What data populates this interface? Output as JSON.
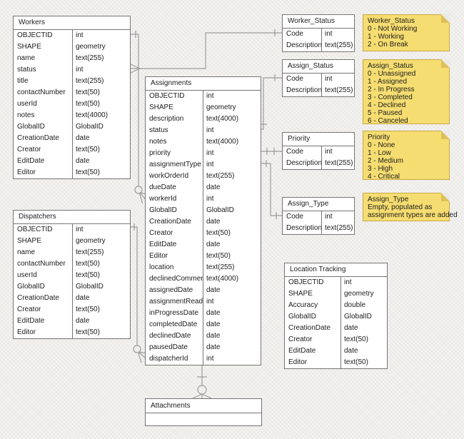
{
  "tables": {
    "workers": {
      "title": "Workers",
      "rows": [
        {
          "name": "OBJECTID",
          "type": "int"
        },
        {
          "name": "SHAPE",
          "type": "geometry"
        },
        {
          "name": "name",
          "type": "text(255)"
        },
        {
          "name": "status",
          "type": "int"
        },
        {
          "name": "title",
          "type": "text(255)"
        },
        {
          "name": "contactNumber",
          "type": "text(50)"
        },
        {
          "name": "userId",
          "type": "text(50)"
        },
        {
          "name": "notes",
          "type": "text(4000)"
        },
        {
          "name": "GlobalID",
          "type": "GlobalID"
        },
        {
          "name": "CreationDate",
          "type": "date"
        },
        {
          "name": "Creator",
          "type": "text(50)"
        },
        {
          "name": "EditDate",
          "type": "date"
        },
        {
          "name": "Editor",
          "type": "text(50)"
        }
      ]
    },
    "dispatchers": {
      "title": "Dispatchers",
      "rows": [
        {
          "name": "OBJECTID",
          "type": "int"
        },
        {
          "name": "SHAPE",
          "type": "geometry"
        },
        {
          "name": "name",
          "type": "text(255)"
        },
        {
          "name": "contactNumber",
          "type": "text(50)"
        },
        {
          "name": "userId",
          "type": "text(50)"
        },
        {
          "name": "GlobalID",
          "type": "GlobalID"
        },
        {
          "name": "CreationDate",
          "type": "date"
        },
        {
          "name": "Creator",
          "type": "text(50)"
        },
        {
          "name": "EditDate",
          "type": "date"
        },
        {
          "name": "Editor",
          "type": "text(50)"
        }
      ]
    },
    "assignments": {
      "title": "Assignments",
      "rows": [
        {
          "name": "OBJECTID",
          "type": "int"
        },
        {
          "name": "SHAPE",
          "type": "geometry"
        },
        {
          "name": "description",
          "type": "text(4000)"
        },
        {
          "name": "status",
          "type": "int"
        },
        {
          "name": "notes",
          "type": "text(4000)"
        },
        {
          "name": "priority",
          "type": "int"
        },
        {
          "name": "assignmentType",
          "type": "int"
        },
        {
          "name": "workOrderId",
          "type": "text(255)"
        },
        {
          "name": "dueDate",
          "type": "date"
        },
        {
          "name": "workerId",
          "type": "int"
        },
        {
          "name": "GlobalID",
          "type": "GlobalID"
        },
        {
          "name": "CreationDate",
          "type": "date"
        },
        {
          "name": "Creator",
          "type": "text(50)"
        },
        {
          "name": "EditDate",
          "type": "date"
        },
        {
          "name": "Editor",
          "type": "text(50)"
        },
        {
          "name": "location",
          "type": "text(255)"
        },
        {
          "name": "declinedComment",
          "type": "text(4000)"
        },
        {
          "name": "assignedDate",
          "type": "date"
        },
        {
          "name": "assignmentRead",
          "type": "int"
        },
        {
          "name": "inProgressDate",
          "type": "date"
        },
        {
          "name": "completedDate",
          "type": "date"
        },
        {
          "name": "declinedDate",
          "type": "date"
        },
        {
          "name": "pausedDate",
          "type": "date"
        },
        {
          "name": "dispatcherId",
          "type": "int"
        }
      ]
    },
    "worker_status": {
      "title": "Worker_Status",
      "rows": [
        {
          "name": "Code",
          "type": "int"
        },
        {
          "name": "Description",
          "type": "text(255)"
        }
      ]
    },
    "assign_status": {
      "title": "Assign_Status",
      "rows": [
        {
          "name": "Code",
          "type": "int"
        },
        {
          "name": "Description",
          "type": "text(255)"
        }
      ]
    },
    "priority": {
      "title": "Priority",
      "rows": [
        {
          "name": "Code",
          "type": "int"
        },
        {
          "name": "Description",
          "type": "text(255)"
        }
      ]
    },
    "assign_type": {
      "title": "Assign_Type",
      "rows": [
        {
          "name": "Code",
          "type": "int"
        },
        {
          "name": "Description",
          "type": "text(255)"
        }
      ]
    },
    "location_tracking": {
      "title": "Location Tracking",
      "rows": [
        {
          "name": "OBJECTID",
          "type": "int"
        },
        {
          "name": "SHAPE",
          "type": "geometry"
        },
        {
          "name": "Accuracy",
          "type": "double"
        },
        {
          "name": "GlobalID",
          "type": "GlobalID"
        },
        {
          "name": "CreationDate",
          "type": "date"
        },
        {
          "name": "Creator",
          "type": "text(50)"
        },
        {
          "name": "EditDate",
          "type": "date"
        },
        {
          "name": "Editor",
          "type": "text(50)"
        }
      ]
    },
    "attachments": {
      "title": "Attachments",
      "rows": []
    }
  },
  "notes": {
    "worker_status": {
      "title": "Worker_Status",
      "lines": [
        "0 - Not Working",
        "1 - Working",
        "2 - On Break"
      ]
    },
    "assign_status": {
      "title": "Assign_Status",
      "lines": [
        "0 - Unassigned",
        "1 - Assigned",
        "2 - In Progress",
        "3 - Completed",
        "4 - Declined",
        "5 - Paused",
        "6 - Canceled"
      ]
    },
    "priority": {
      "title": "Priority",
      "lines": [
        "0 - None",
        "1 - Low",
        "2 - Medium",
        "3 - High",
        "4 - Critical"
      ]
    },
    "assign_type": {
      "title": "Assign_Type",
      "lines": [
        "Empty, populated as",
        "assignment types are added"
      ]
    }
  },
  "relationships": [
    {
      "from": "Worker_Status.Code",
      "to": "Workers.status"
    },
    {
      "from": "Workers.OBJECTID",
      "to": "Assignments.workerId"
    },
    {
      "from": "Dispatchers.OBJECTID",
      "to": "Assignments.dispatcherId"
    },
    {
      "from": "Assign_Status.Code",
      "to": "Assignments.status"
    },
    {
      "from": "Priority.Code",
      "to": "Assignments.priority"
    },
    {
      "from": "Assign_Type.Code",
      "to": "Assignments.assignmentType"
    },
    {
      "from": "Assignments",
      "to": "Attachments"
    }
  ],
  "colors": {
    "canvas": "#ebeae7",
    "table_border": "#757575",
    "table_bg": "#ffffff",
    "text": "#1c1c1c",
    "connector": "#9c9c9c",
    "note_bg": "#f6dd71",
    "note_border": "#c8a84b",
    "note_fold": "#dec059"
  }
}
